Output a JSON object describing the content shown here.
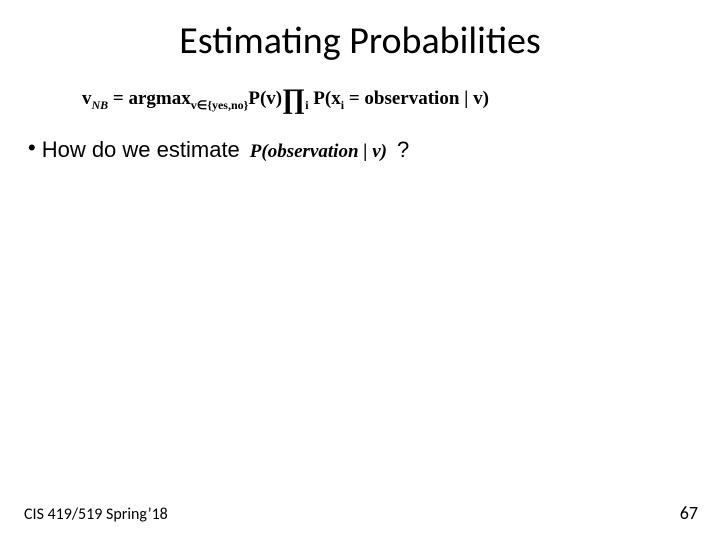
{
  "slide": {
    "title": "Estimating Probabilities",
    "bullet_prefix": "How do we estimate",
    "question_mark": "?",
    "footer_left": "CIS 419/519 Spring’18",
    "page_number": "67"
  },
  "formula": {
    "v_label": "v",
    "nb_sub": "NB",
    "eq": " = ",
    "argmax": "argmax",
    "argmax_sub": "v∈{yes,no}",
    "P_v": "P(v)",
    "prod": "∏",
    "prod_sub": "i",
    "P_xi_open": " P(x",
    "xi_sub": "i",
    "xi_rest": " = observation | v)"
  },
  "inline": {
    "text": "P(observation | v)"
  },
  "style": {
    "bg": "#ffffff",
    "text_color": "#000000"
  }
}
